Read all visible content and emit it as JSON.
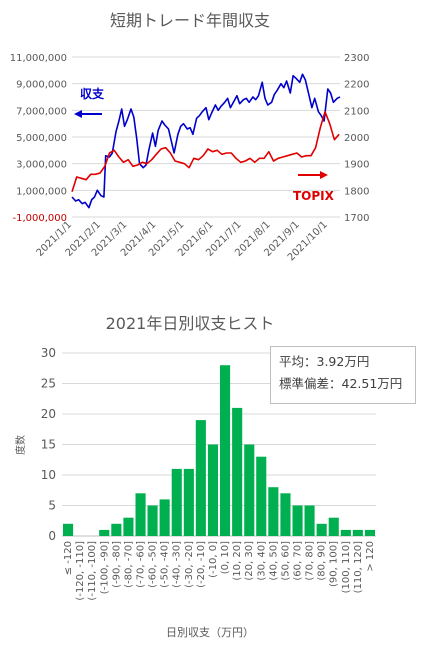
{
  "chart_data": [
    {
      "type": "line",
      "title": "短期トレード年間収支",
      "x_tick_labels": [
        "2021/1/1",
        "2021/2/1",
        "2021/3/1",
        "2021/4/1",
        "2021/5/1",
        "2021/6/1",
        "2021/7/1",
        "2021/8/1",
        "2021/9/1",
        "2021/10/1"
      ],
      "y_left_ticks": [
        "11,000,000",
        "9,000,000",
        "7,000,000",
        "5,000,000",
        "3,000,000",
        "1,000,000",
        "-1,000,000"
      ],
      "y_left_range": [
        -1000000,
        11000000
      ],
      "y_right_ticks": [
        "2300",
        "2200",
        "2100",
        "2000",
        "1900",
        "1800",
        "1700"
      ],
      "y_right_range": [
        1700,
        2300
      ],
      "series": [
        {
          "name": "収支",
          "color": "#0000cc",
          "axis": "left",
          "x": [
            0,
            4,
            7,
            11,
            14,
            18,
            21,
            24,
            27,
            31,
            34,
            36,
            40,
            43,
            47,
            50,
            53,
            56,
            59,
            63,
            66,
            69,
            72,
            76,
            79,
            82,
            86,
            89,
            92,
            96,
            99,
            103,
            106,
            109,
            113,
            116,
            119,
            123,
            126,
            129,
            133,
            136,
            139,
            143,
            146,
            149,
            153,
            156,
            159,
            163,
            166,
            169,
            173,
            176,
            179,
            183,
            186,
            189,
            193,
            196,
            199,
            203,
            206,
            209,
            213,
            216,
            219,
            223,
            226,
            229,
            233,
            236,
            239,
            243,
            246,
            249,
            253,
            256,
            259,
            263,
            266,
            269,
            273,
            276,
            279,
            283,
            286
          ],
          "values": [
            500000,
            200000,
            300000,
            0,
            100000,
            -300000,
            300000,
            500000,
            1000000,
            600000,
            500000,
            3600000,
            3500000,
            3800000,
            5400000,
            6200000,
            7100000,
            5800000,
            6300000,
            7100000,
            6500000,
            4900000,
            3000000,
            2700000,
            2900000,
            4000000,
            5300000,
            4300000,
            5500000,
            6200000,
            5900000,
            5600000,
            4700000,
            3800000,
            5200000,
            5800000,
            6000000,
            5600000,
            5700000,
            5200000,
            6400000,
            6600000,
            6900000,
            7200000,
            6300000,
            6800000,
            7400000,
            7000000,
            7300000,
            7600000,
            7900000,
            7200000,
            7700000,
            8100000,
            7500000,
            7800000,
            7900000,
            7600000,
            8000000,
            7800000,
            8100000,
            9100000,
            7900000,
            7400000,
            7600000,
            8200000,
            8500000,
            9000000,
            8700000,
            9200000,
            8300000,
            9600000,
            9400000,
            9100000,
            9700000,
            9300000,
            8100000,
            7200000,
            7900000,
            6900000,
            6600000,
            6200000,
            8600000,
            8300000,
            7600000,
            7900000,
            8000000
          ]
        },
        {
          "name": "TOPIX",
          "color": "#e00000",
          "axis": "right",
          "x": [
            0,
            5,
            10,
            15,
            20,
            25,
            30,
            35,
            40,
            45,
            50,
            55,
            60,
            65,
            70,
            75,
            80,
            85,
            90,
            95,
            100,
            105,
            110,
            115,
            120,
            125,
            130,
            135,
            140,
            145,
            150,
            155,
            160,
            165,
            170,
            175,
            180,
            185,
            190,
            195,
            200,
            205,
            210,
            215,
            220,
            225,
            230,
            235,
            240,
            245,
            250,
            255,
            260,
            265,
            270,
            275,
            280,
            285
          ],
          "values": [
            1795,
            1850,
            1845,
            1840,
            1860,
            1860,
            1865,
            1890,
            1940,
            1950,
            1925,
            1905,
            1915,
            1890,
            1895,
            1905,
            1900,
            1915,
            1935,
            1955,
            1960,
            1940,
            1910,
            1905,
            1900,
            1885,
            1920,
            1915,
            1930,
            1955,
            1945,
            1950,
            1935,
            1940,
            1940,
            1920,
            1905,
            1910,
            1920,
            1905,
            1920,
            1920,
            1945,
            1910,
            1920,
            1925,
            1930,
            1935,
            1940,
            1925,
            1930,
            1930,
            1960,
            2035,
            2095,
            2050,
            1990,
            2010
          ]
        }
      ],
      "annotations": [
        {
          "text": "収支",
          "color": "#0000cc"
        },
        {
          "text": "TOPIX",
          "color": "#e00000"
        }
      ]
    },
    {
      "type": "bar",
      "title": "2021年日別収支ヒスト",
      "xlabel": "日別収支（万円）",
      "ylabel": "度数",
      "ylim": [
        0,
        30
      ],
      "y_ticks": [
        "0",
        "5",
        "10",
        "15",
        "20",
        "25",
        "30"
      ],
      "color": "#00b050",
      "categories": [
        "≤ -120",
        "(-120, -110]",
        "(-110, -100]",
        "(-100, -90]",
        "(-90, -80]",
        "(-80, -70]",
        "(-70, -60]",
        "(-60, -50]",
        "(-50, -40]",
        "(-40, -30]",
        "(-30, -20]",
        "(-20, -10]",
        "(-10, 0]",
        "(0, 10]",
        "(10, 20]",
        "(20, 30]",
        "(30, 40]",
        "(40, 50]",
        "(50, 60]",
        "(60, 70]",
        "(70, 80]",
        "(80, 90]",
        "(90, 100]",
        "(100, 110]",
        "(110, 120]",
        "> 120"
      ],
      "values": [
        2,
        0,
        0,
        1,
        2,
        3,
        7,
        5,
        6,
        11,
        11,
        19,
        15,
        28,
        21,
        15,
        13,
        8,
        7,
        5,
        5,
        2,
        3,
        1,
        1,
        1
      ]
    }
  ],
  "stats": {
    "mean": "平均：3.92万円",
    "std": "標準偏差：42.51万円"
  }
}
